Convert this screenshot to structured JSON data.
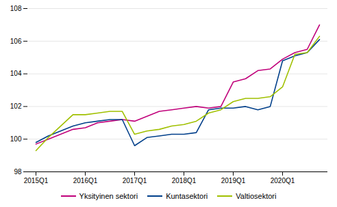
{
  "chart_data": {
    "type": "line",
    "categories": [
      "2015Q1",
      null,
      null,
      null,
      "2016Q1",
      null,
      null,
      null,
      "2017Q1",
      null,
      null,
      null,
      "2018Q1",
      null,
      null,
      null,
      "2019Q1",
      null,
      null,
      null,
      "2020Q1",
      null,
      null,
      null
    ],
    "series": [
      {
        "name": "Yksityinen sektori",
        "color": "#c0007a",
        "values": [
          99.7,
          100.0,
          100.3,
          100.6,
          100.7,
          101.0,
          101.1,
          101.2,
          101.1,
          101.4,
          101.7,
          101.8,
          101.9,
          102.0,
          101.9,
          102.0,
          103.5,
          103.7,
          104.2,
          104.3,
          104.9,
          105.3,
          105.5,
          107.0
        ]
      },
      {
        "name": "Kuntasektori",
        "color": "#003f8a",
        "values": [
          99.8,
          100.2,
          100.5,
          100.8,
          101.0,
          101.1,
          101.2,
          101.2,
          99.6,
          100.1,
          100.2,
          100.3,
          100.3,
          100.4,
          101.8,
          101.9,
          101.9,
          102.0,
          101.8,
          102.0,
          104.8,
          105.1,
          105.3,
          106.1
        ]
      },
      {
        "name": "Valtiosektori",
        "color": "#a0c000",
        "values": [
          99.3,
          100.1,
          100.8,
          101.5,
          101.5,
          101.6,
          101.7,
          101.7,
          100.3,
          100.5,
          100.6,
          100.8,
          100.9,
          101.1,
          101.6,
          101.8,
          102.3,
          102.5,
          102.5,
          102.6,
          103.2,
          105.2,
          105.3,
          106.3
        ]
      }
    ],
    "ylim": [
      98,
      108
    ],
    "yticks": [
      98,
      100,
      102,
      104,
      106,
      108
    ],
    "grid": true,
    "legend": "bottom"
  }
}
